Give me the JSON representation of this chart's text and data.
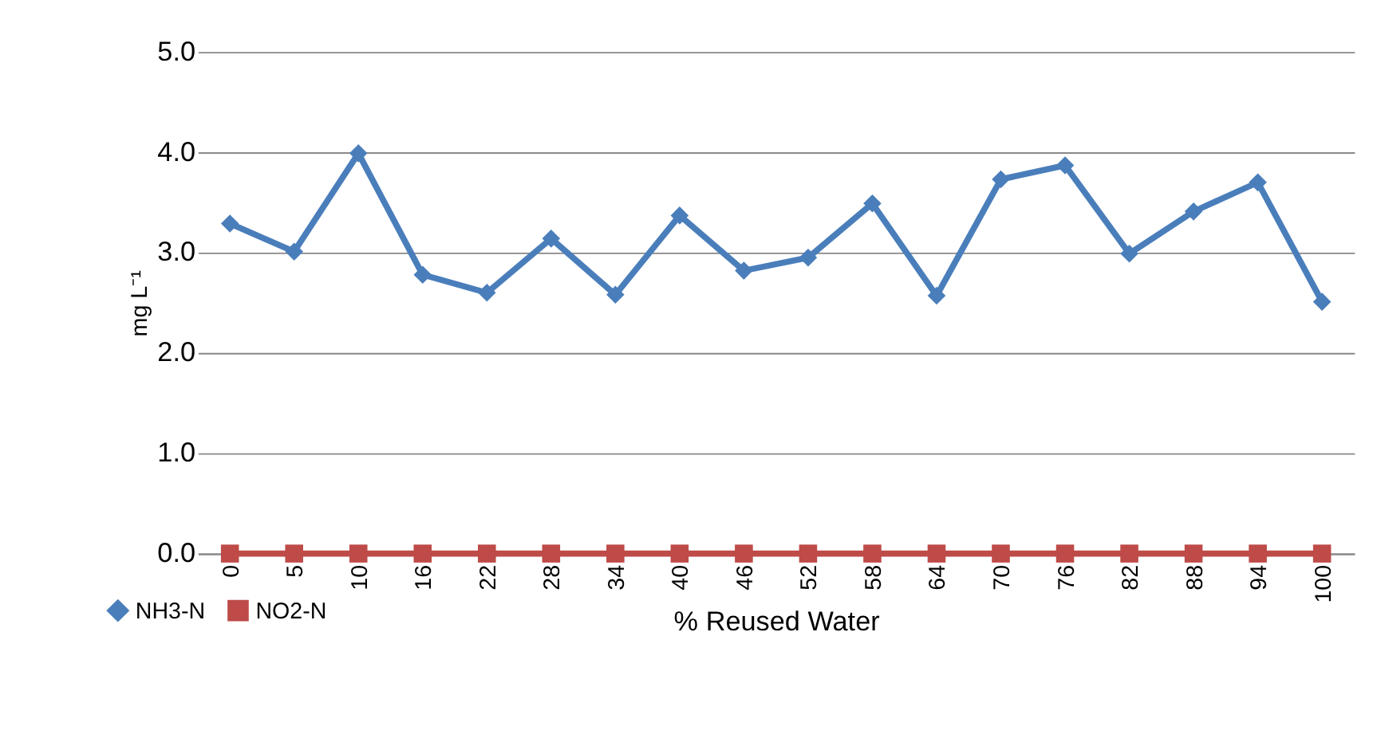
{
  "chart_data": {
    "type": "line",
    "xlabel": "% Reused Water",
    "ylabel": "mg L⁻¹",
    "categories": [
      "0",
      "5",
      "10",
      "16",
      "22",
      "28",
      "34",
      "40",
      "46",
      "52",
      "58",
      "64",
      "70",
      "76",
      "82",
      "88",
      "94",
      "100"
    ],
    "series": [
      {
        "name": "NH3-N",
        "color": "#4a7ebb",
        "marker": "diamond",
        "values": [
          3.29,
          3.01,
          3.99,
          2.78,
          2.6,
          3.14,
          2.58,
          3.37,
          2.82,
          2.95,
          3.49,
          2.57,
          3.73,
          3.87,
          2.99,
          3.41,
          3.7,
          2.51
        ]
      },
      {
        "name": "NO2-N",
        "color": "#be4b48",
        "marker": "square",
        "values": [
          0,
          0,
          0,
          0,
          0,
          0,
          0,
          0,
          0,
          0,
          0,
          0,
          0,
          0,
          0,
          0,
          0,
          0
        ]
      }
    ],
    "ylim": [
      0,
      5
    ],
    "yticks": [
      {
        "value": 0,
        "label": "0.0"
      },
      {
        "value": 1,
        "label": "1.0"
      },
      {
        "value": 2,
        "label": "2.0"
      },
      {
        "value": 3,
        "label": "3.0"
      },
      {
        "value": 4,
        "label": "4.0"
      },
      {
        "value": 5,
        "label": "5.0"
      }
    ],
    "grid": "y",
    "legend": "bottom left",
    "line_style": "solid"
  }
}
